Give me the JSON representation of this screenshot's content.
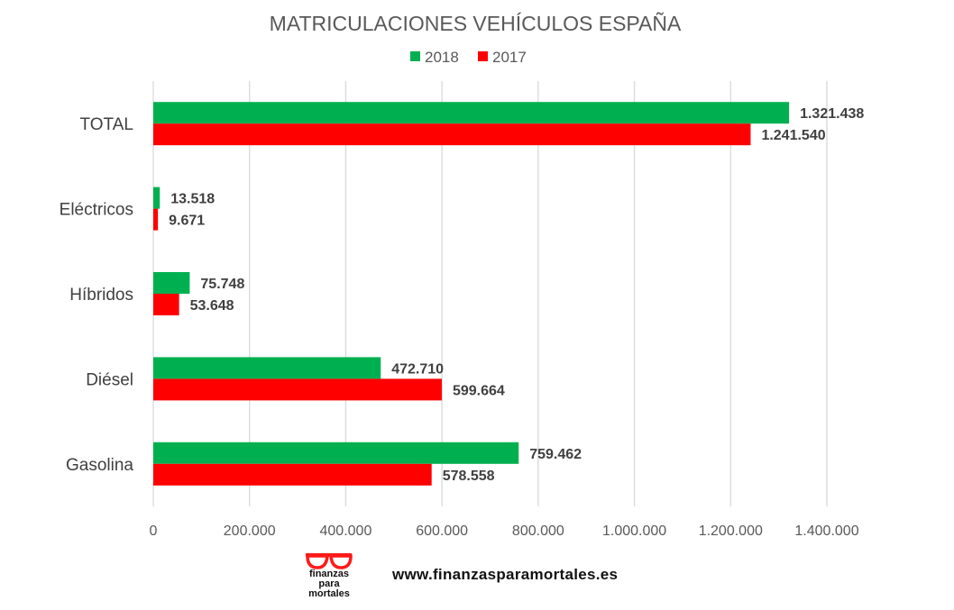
{
  "chart_data": {
    "type": "bar",
    "orientation": "horizontal",
    "title": "MATRICULACIONES VEHÍCULOS ESPAÑA",
    "categories": [
      "TOTAL",
      "Eléctricos",
      "Híbridos",
      "Diésel",
      "Gasolina"
    ],
    "series": [
      {
        "name": "2018",
        "color": "#00B050",
        "values": [
          1321438,
          13518,
          75748,
          472710,
          759462
        ],
        "labels": [
          "1.321.438",
          "13.518",
          "75.748",
          "472.710",
          "759.462"
        ]
      },
      {
        "name": "2017",
        "color": "#FF0000",
        "values": [
          1241540,
          9671,
          53648,
          599664,
          578558
        ],
        "labels": [
          "1.241.540",
          "9.671",
          "53.648",
          "599.664",
          "578.558"
        ]
      }
    ],
    "xlim": [
      0,
      1400000
    ],
    "xticks": [
      0,
      200000,
      400000,
      600000,
      800000,
      1000000,
      1200000,
      1400000
    ],
    "xtick_labels": [
      "0",
      "200.000",
      "400.000",
      "600.000",
      "800.000",
      "1.000.000",
      "1.200.000",
      "1.400.000"
    ],
    "grid": true,
    "legend": "top-center"
  },
  "footer": {
    "logo_text": [
      "finanzas",
      "para",
      "mortales"
    ],
    "url": "www.finanzasparamortales.es"
  }
}
